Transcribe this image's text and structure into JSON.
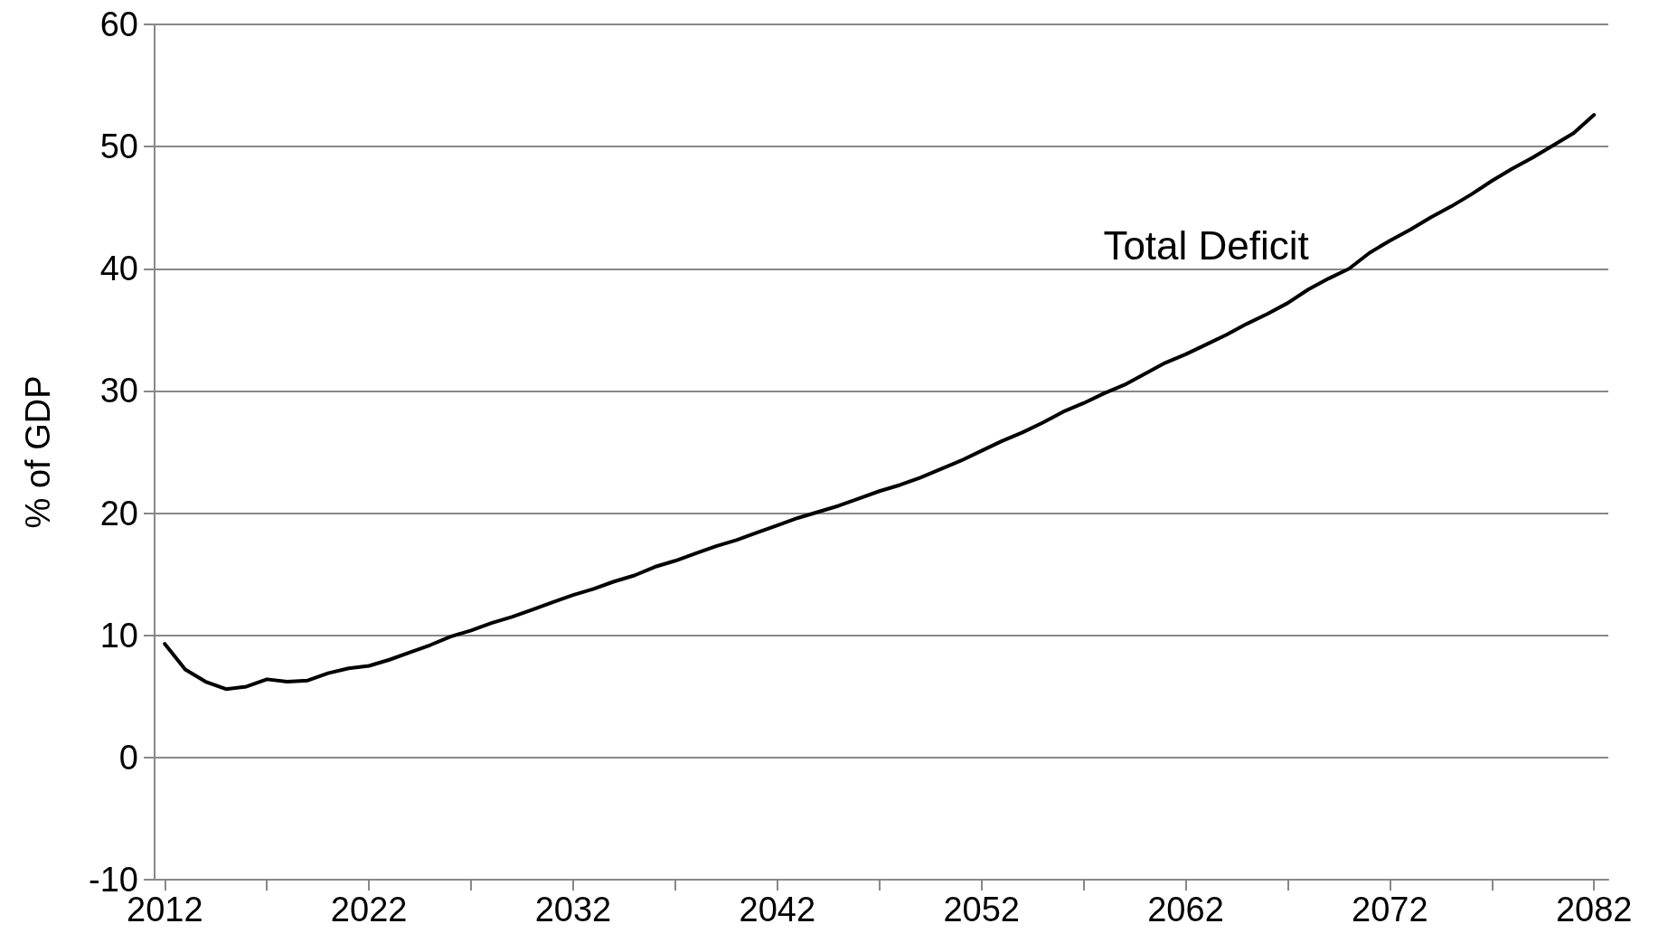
{
  "chart_data": {
    "type": "line",
    "ylabel": "% of GDP",
    "grid": "y",
    "marker": "none",
    "line_style": "solid",
    "x": [
      2012,
      2013,
      2014,
      2015,
      2016,
      2017,
      2018,
      2019,
      2020,
      2021,
      2022,
      2023,
      2024,
      2025,
      2026,
      2027,
      2028,
      2029,
      2030,
      2031,
      2032,
      2033,
      2034,
      2035,
      2036,
      2037,
      2038,
      2039,
      2040,
      2041,
      2042,
      2043,
      2044,
      2045,
      2046,
      2047,
      2048,
      2049,
      2050,
      2051,
      2052,
      2053,
      2054,
      2055,
      2056,
      2057,
      2058,
      2059,
      2060,
      2061,
      2062,
      2063,
      2064,
      2065,
      2066,
      2067,
      2068,
      2069,
      2070,
      2071,
      2072,
      2073,
      2074,
      2075,
      2076,
      2077,
      2078,
      2079,
      2080,
      2081,
      2082
    ],
    "series": [
      {
        "name": "Total Deficit",
        "color": "#000000",
        "values": [
          9.3,
          7.2,
          6.2,
          5.6,
          5.8,
          6.4,
          6.2,
          6.3,
          6.9,
          7.3,
          7.5,
          8.0,
          8.6,
          9.2,
          9.9,
          10.4,
          11.0,
          11.5,
          12.1,
          12.7,
          13.3,
          13.8,
          14.4,
          14.9,
          15.6,
          16.1,
          16.7,
          17.3,
          17.8,
          18.4,
          19.0,
          19.6,
          20.1,
          20.6,
          21.2,
          21.8,
          22.3,
          22.9,
          23.6,
          24.3,
          25.1,
          25.9,
          26.6,
          27.4,
          28.3,
          29.0,
          29.8,
          30.5,
          31.4,
          32.3,
          33.0,
          33.8,
          34.6,
          35.5,
          36.3,
          37.2,
          38.3,
          39.2,
          40.0,
          41.3,
          42.3,
          43.2,
          44.2,
          45.1,
          46.1,
          47.2,
          48.2,
          49.1,
          50.1,
          51.1,
          52.6
        ]
      }
    ],
    "xlim": [
      2011.5,
      2082.7
    ],
    "xticks": [
      2012,
      {
        "value": 2017,
        "label": null
      },
      2022,
      {
        "value": 2027,
        "label": null
      },
      2032,
      {
        "value": 2037,
        "label": null
      },
      2042,
      {
        "value": 2047,
        "label": null
      },
      2052,
      {
        "value": 2057,
        "label": null
      },
      2062,
      {
        "value": 2067,
        "label": null
      },
      2072,
      {
        "value": 2077,
        "label": null
      },
      2082
    ],
    "ylim": [
      -10,
      60
    ],
    "yticks": [
      -10,
      0,
      10,
      20,
      30,
      40,
      50,
      60
    ]
  }
}
